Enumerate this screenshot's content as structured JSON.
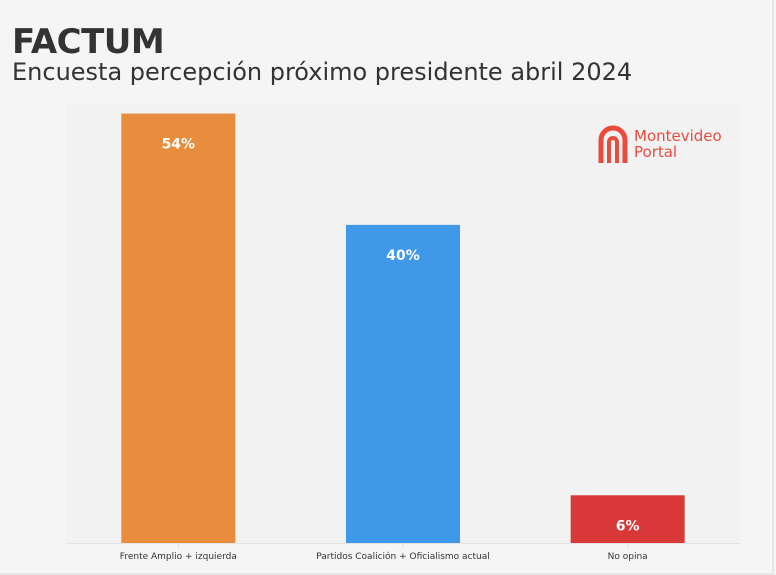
{
  "header": {
    "title": "FACTUM",
    "subtitle": "Encuesta percepción próximo presidente abril 2024"
  },
  "logo": {
    "line1": "Montevideo",
    "line2": "Portal"
  },
  "chart_data": {
    "type": "bar",
    "title": "Encuesta percepción próximo presidente abril 2024",
    "categories": [
      "Frente Amplio + izquierda",
      "Partidos Coalición + Oficialismo actual",
      "No opina"
    ],
    "values": [
      54,
      40,
      6
    ],
    "data_labels": [
      "54%",
      "40%",
      "6%"
    ],
    "colors": [
      "#e88c3e",
      "#3f98e8",
      "#d93838"
    ],
    "ylim": [
      0,
      55.2
    ],
    "xlabel": "",
    "ylabel": "",
    "grid": false
  }
}
